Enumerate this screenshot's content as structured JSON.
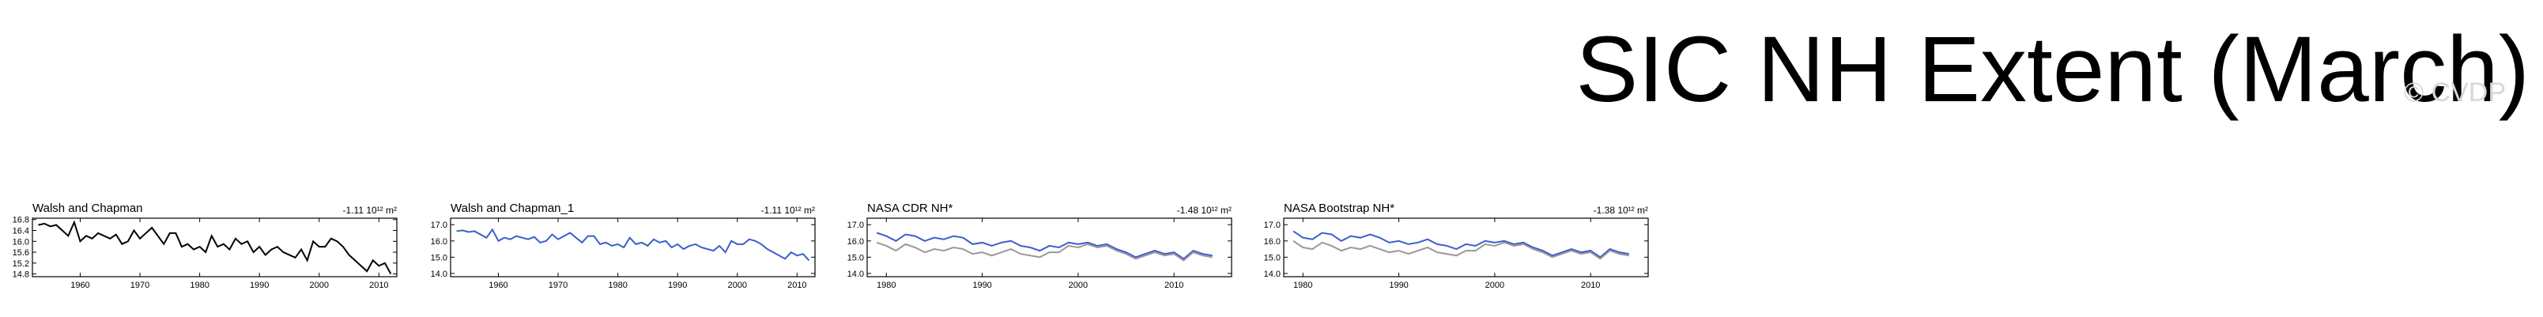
{
  "title": "SIC NH Extent (March)",
  "watermark": "© CVDP",
  "chart_data": [
    {
      "type": "line",
      "title": "Walsh and Chapman",
      "annotation": "-1.11 10¹² m²",
      "x": [
        1953,
        1954,
        1955,
        1956,
        1957,
        1958,
        1959,
        1960,
        1961,
        1962,
        1963,
        1964,
        1965,
        1966,
        1967,
        1968,
        1969,
        1970,
        1971,
        1972,
        1973,
        1974,
        1975,
        1976,
        1977,
        1978,
        1979,
        1980,
        1981,
        1982,
        1983,
        1984,
        1985,
        1986,
        1987,
        1988,
        1989,
        1990,
        1991,
        1992,
        1993,
        1994,
        1995,
        1996,
        1997,
        1998,
        1999,
        2000,
        2001,
        2002,
        2003,
        2004,
        2005,
        2006,
        2007,
        2008,
        2009,
        2010,
        2011,
        2012
      ],
      "series": [
        {
          "color": "#000000",
          "values": [
            16.6,
            16.65,
            16.55,
            16.6,
            16.4,
            16.2,
            16.7,
            16.0,
            16.2,
            16.1,
            16.3,
            16.2,
            16.1,
            16.25,
            15.9,
            16.0,
            16.4,
            16.1,
            16.3,
            16.5,
            16.2,
            15.9,
            16.3,
            16.3,
            15.8,
            15.9,
            15.7,
            15.8,
            15.6,
            16.2,
            15.8,
            15.9,
            15.7,
            16.1,
            15.9,
            16.0,
            15.6,
            15.8,
            15.5,
            15.7,
            15.8,
            15.6,
            15.5,
            15.4,
            15.7,
            15.3,
            16.0,
            15.8,
            15.8,
            16.1,
            16.0,
            15.8,
            15.5,
            15.3,
            15.1,
            14.9,
            15.3,
            15.1,
            15.2,
            14.8
          ]
        }
      ],
      "xlim": [
        1952,
        2013
      ],
      "xticks": [
        1960,
        1970,
        1980,
        1990,
        2000,
        2010
      ],
      "ylim": [
        14.7,
        16.85
      ],
      "yticks": [
        14.8,
        15.2,
        15.6,
        {
          "value": 16,
          "label": "16.0"
        },
        16.4,
        16.8
      ]
    },
    {
      "type": "line",
      "title": "Walsh and Chapman_1",
      "annotation": "-1.11 10¹² m²",
      "x": [
        1953,
        1954,
        1955,
        1956,
        1957,
        1958,
        1959,
        1960,
        1961,
        1962,
        1963,
        1964,
        1965,
        1966,
        1967,
        1968,
        1969,
        1970,
        1971,
        1972,
        1973,
        1974,
        1975,
        1976,
        1977,
        1978,
        1979,
        1980,
        1981,
        1982,
        1983,
        1984,
        1985,
        1986,
        1987,
        1988,
        1989,
        1990,
        1991,
        1992,
        1993,
        1994,
        1995,
        1996,
        1997,
        1998,
        1999,
        2000,
        2001,
        2002,
        2003,
        2004,
        2005,
        2006,
        2007,
        2008,
        2009,
        2010,
        2011,
        2012
      ],
      "series": [
        {
          "color": "#3a5fcd",
          "values": [
            16.6,
            16.65,
            16.55,
            16.6,
            16.4,
            16.2,
            16.7,
            16.0,
            16.2,
            16.1,
            16.3,
            16.2,
            16.1,
            16.25,
            15.9,
            16.0,
            16.4,
            16.1,
            16.3,
            16.5,
            16.2,
            15.9,
            16.3,
            16.3,
            15.8,
            15.9,
            15.7,
            15.8,
            15.6,
            16.2,
            15.8,
            15.9,
            15.7,
            16.1,
            15.9,
            16.0,
            15.6,
            15.8,
            15.5,
            15.7,
            15.8,
            15.6,
            15.5,
            15.4,
            15.7,
            15.3,
            16.0,
            15.8,
            15.8,
            16.1,
            16.0,
            15.8,
            15.5,
            15.3,
            15.1,
            14.9,
            15.3,
            15.1,
            15.2,
            14.8
          ]
        }
      ],
      "xlim": [
        1952,
        2013
      ],
      "xticks": [
        1960,
        1970,
        1980,
        1990,
        2000,
        2010
      ],
      "ylim": [
        13.8,
        17.4
      ],
      "yticks": [
        {
          "value": 14,
          "label": "14.0"
        },
        {
          "value": 15,
          "label": "15.0"
        },
        {
          "value": 16,
          "label": "16.0"
        },
        {
          "value": 17,
          "label": "17.0"
        }
      ]
    },
    {
      "type": "line",
      "title": "NASA CDR NH*",
      "annotation": "-1.48 10¹² m²",
      "x": [
        1979,
        1980,
        1981,
        1982,
        1983,
        1984,
        1985,
        1986,
        1987,
        1988,
        1989,
        1990,
        1991,
        1992,
        1993,
        1994,
        1995,
        1996,
        1997,
        1998,
        1999,
        2000,
        2001,
        2002,
        2003,
        2004,
        2005,
        2006,
        2007,
        2008,
        2009,
        2010,
        2011,
        2012,
        2013,
        2014
      ],
      "series": [
        {
          "color": "#3a5fcd",
          "values": [
            16.5,
            16.3,
            16.0,
            16.4,
            16.3,
            16.0,
            16.2,
            16.1,
            16.3,
            16.2,
            15.8,
            15.9,
            15.7,
            15.9,
            16.0,
            15.7,
            15.6,
            15.4,
            15.7,
            15.6,
            15.9,
            15.8,
            15.9,
            15.7,
            15.8,
            15.5,
            15.3,
            15.0,
            15.2,
            15.4,
            15.2,
            15.3,
            14.9,
            15.4,
            15.2,
            15.1
          ]
        },
        {
          "color": "#999999",
          "values": [
            15.9,
            15.7,
            15.4,
            15.8,
            15.6,
            15.3,
            15.5,
            15.4,
            15.6,
            15.5,
            15.2,
            15.3,
            15.1,
            15.3,
            15.5,
            15.2,
            15.1,
            15.0,
            15.3,
            15.3,
            15.7,
            15.6,
            15.8,
            15.6,
            15.7,
            15.4,
            15.2,
            14.9,
            15.1,
            15.3,
            15.1,
            15.2,
            14.8,
            15.3,
            15.1,
            15.0
          ]
        }
      ],
      "xlim": [
        1978,
        2016
      ],
      "xticks": [
        1980,
        1990,
        2000,
        2010
      ],
      "ylim": [
        13.8,
        17.4
      ],
      "yticks": [
        {
          "value": 14,
          "label": "14.0"
        },
        {
          "value": 15,
          "label": "15.0"
        },
        {
          "value": 16,
          "label": "16.0"
        },
        {
          "value": 17,
          "label": "17.0"
        }
      ]
    },
    {
      "type": "line",
      "title": "NASA Bootstrap NH*",
      "annotation": "-1.38 10¹² m²",
      "x": [
        1979,
        1980,
        1981,
        1982,
        1983,
        1984,
        1985,
        1986,
        1987,
        1988,
        1989,
        1990,
        1991,
        1992,
        1993,
        1994,
        1995,
        1996,
        1997,
        1998,
        1999,
        2000,
        2001,
        2002,
        2003,
        2004,
        2005,
        2006,
        2007,
        2008,
        2009,
        2010,
        2011,
        2012,
        2013,
        2014
      ],
      "series": [
        {
          "color": "#3a5fcd",
          "values": [
            16.6,
            16.2,
            16.1,
            16.5,
            16.4,
            16.0,
            16.3,
            16.2,
            16.4,
            16.2,
            15.9,
            16.0,
            15.8,
            15.9,
            16.1,
            15.8,
            15.7,
            15.5,
            15.8,
            15.7,
            16.0,
            15.9,
            16.0,
            15.8,
            15.9,
            15.6,
            15.4,
            15.1,
            15.3,
            15.5,
            15.3,
            15.4,
            15.0,
            15.5,
            15.3,
            15.2
          ]
        },
        {
          "color": "#999999",
          "values": [
            16.0,
            15.6,
            15.5,
            15.9,
            15.7,
            15.4,
            15.6,
            15.5,
            15.7,
            15.5,
            15.3,
            15.4,
            15.2,
            15.4,
            15.6,
            15.3,
            15.2,
            15.1,
            15.4,
            15.4,
            15.8,
            15.7,
            15.9,
            15.7,
            15.8,
            15.5,
            15.3,
            15.0,
            15.2,
            15.4,
            15.2,
            15.3,
            14.9,
            15.4,
            15.2,
            15.1
          ]
        }
      ],
      "xlim": [
        1978,
        2016
      ],
      "xticks": [
        1980,
        1990,
        2000,
        2010
      ],
      "ylim": [
        13.8,
        17.4
      ],
      "yticks": [
        {
          "value": 14,
          "label": "14.0"
        },
        {
          "value": 15,
          "label": "15.0"
        },
        {
          "value": 16,
          "label": "16.0"
        },
        {
          "value": 17,
          "label": "17.0"
        }
      ]
    }
  ]
}
